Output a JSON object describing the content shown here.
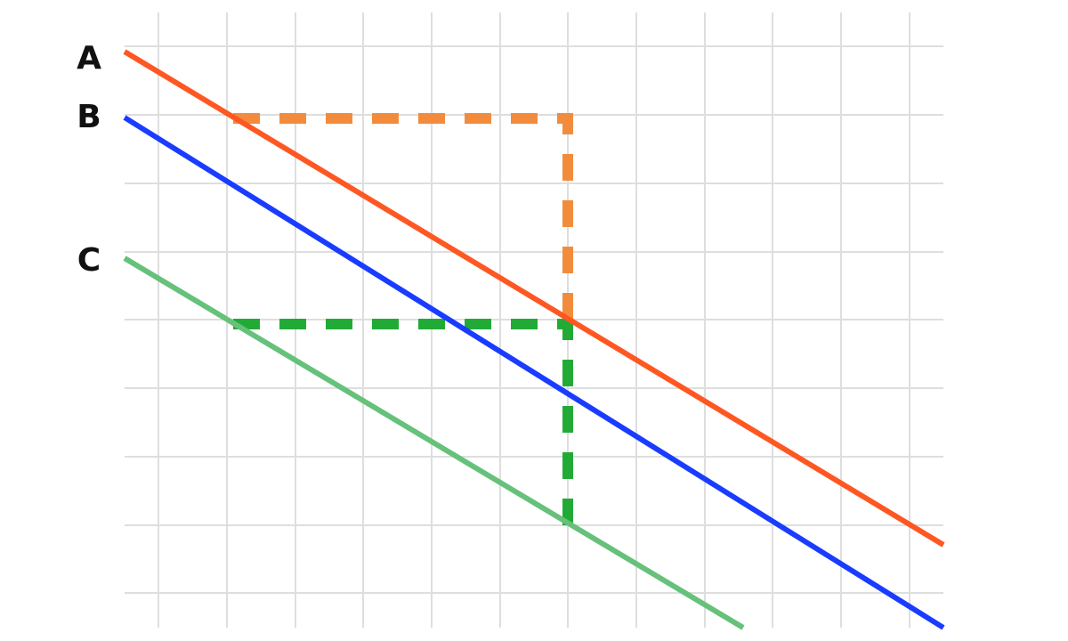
{
  "labels": {
    "a": "A",
    "b": "B",
    "c": "C"
  },
  "colors": {
    "background": "#ffffff",
    "grid": "#dedede",
    "line_a": "#ff5722",
    "line_b": "#1a3cff",
    "line_c": "#66c17a",
    "guide_orange": "#f28c3c",
    "guide_green": "#22aa36",
    "label": "#111111"
  }
}
